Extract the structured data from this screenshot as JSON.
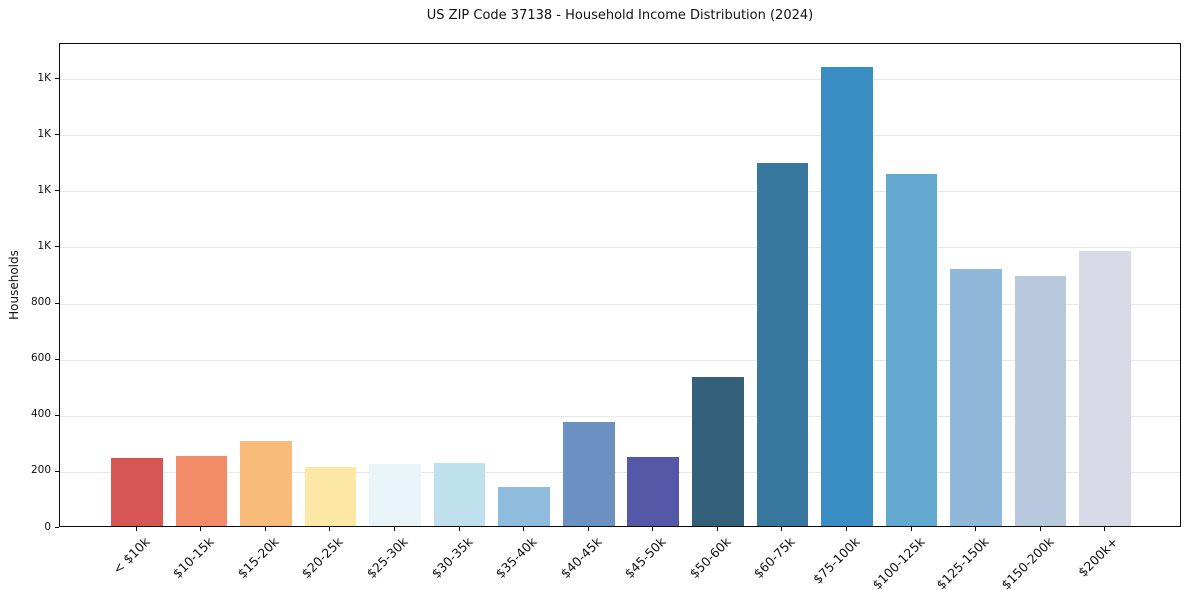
{
  "figure": {
    "title": "US ZIP Code 37138 - Household Income Distribution (2024)",
    "ylabel": "Households"
  },
  "chart_data": {
    "type": "bar",
    "title": "US ZIP Code 37138 - Household Income Distribution (2024)",
    "xlabel": "",
    "ylabel": "Households",
    "categories": [
      "< $10k",
      "$10-15k",
      "$15-20k",
      "$20-25k",
      "$25-30k",
      "$30-35k",
      "$35-40k",
      "$40-45k",
      "$45-50k",
      "$50-60k",
      "$60-75k",
      "$75-100k",
      "$100-125k",
      "$125-150k",
      "$150-200k",
      "$200k+"
    ],
    "values": [
      243,
      250,
      303,
      210,
      221,
      226,
      140,
      372,
      247,
      531,
      1293,
      1636,
      1254,
      916,
      892,
      979
    ],
    "bar_colors": [
      "#d65653",
      "#f28b68",
      "#f8bb7a",
      "#fce8a4",
      "#e8f4f8",
      "#bfe0ed",
      "#8fbcdd",
      "#6a91c1",
      "#5558a6",
      "#35607a",
      "#38789f",
      "#3b8ec4",
      "#62a8cf",
      "#90b8d8",
      "#b8c9de",
      "#d8dae8"
    ],
    "ylim": [
      0,
      1725
    ],
    "yticks": [
      {
        "value": 0,
        "label": "0"
      },
      {
        "value": 200,
        "label": "200"
      },
      {
        "value": 400,
        "label": "400"
      },
      {
        "value": 600,
        "label": "600"
      },
      {
        "value": 800,
        "label": "800"
      },
      {
        "value": 1000,
        "label": "1K"
      },
      {
        "value": 1200,
        "label": "1K"
      },
      {
        "value": 1400,
        "label": "1K"
      },
      {
        "value": 1600,
        "label": "1K"
      }
    ],
    "grid": true,
    "legend_position": "none",
    "background": "#ffffff",
    "axis_color": "#0a0a0a",
    "grid_color": "#e8e8e8"
  }
}
